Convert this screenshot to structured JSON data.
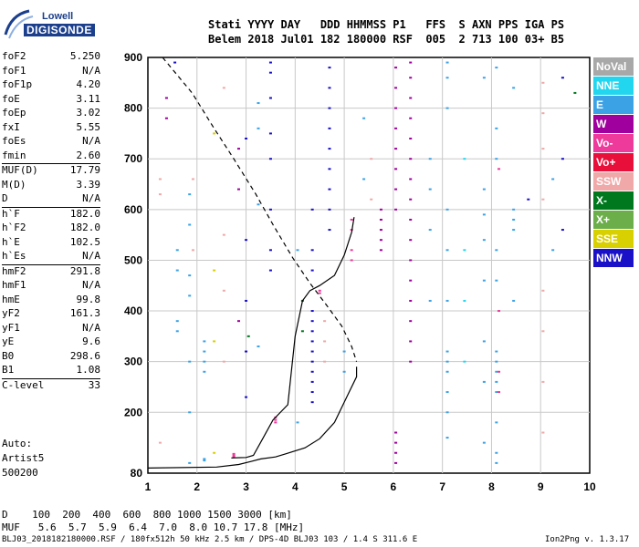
{
  "logo": {
    "line1": "Lowell",
    "line2": "DIGISONDE"
  },
  "header": {
    "line1": "Stati YYYY DAY   DDD HHMMSS P1   FFS  S AXN PPS IGA PS",
    "line2": "Belem 2018 Jul01 182 180000 RSF  005  2 713 100 03+ B5"
  },
  "params": [
    {
      "label": "foF2",
      "value": "5.250"
    },
    {
      "label": "foF1",
      "value": "N/A"
    },
    {
      "label": "foF1p",
      "value": "4.20"
    },
    {
      "label": "foE",
      "value": "3.11"
    },
    {
      "label": "foEp",
      "value": "3.02"
    },
    {
      "label": "fxI",
      "value": "5.55"
    },
    {
      "label": "foEs",
      "value": "N/A"
    },
    {
      "label": "fmin",
      "value": "2.60"
    },
    {
      "label": "MUF(D)",
      "value": "17.79",
      "sep": true
    },
    {
      "label": "M(D)",
      "value": "3.39"
    },
    {
      "label": "D",
      "value": "N/A"
    },
    {
      "label": "h`F",
      "value": "182.0",
      "sep": true
    },
    {
      "label": "h`F2",
      "value": "182.0"
    },
    {
      "label": "h`E",
      "value": "102.5"
    },
    {
      "label": "h`Es",
      "value": "N/A"
    },
    {
      "label": "hmF2",
      "value": "291.8",
      "sep": true
    },
    {
      "label": "hmF1",
      "value": "N/A"
    },
    {
      "label": "hmE",
      "value": "99.8"
    },
    {
      "label": "yF2",
      "value": "161.3"
    },
    {
      "label": "yF1",
      "value": "N/A"
    },
    {
      "label": "yE",
      "value": "9.6"
    },
    {
      "label": "B0",
      "value": "298.6"
    },
    {
      "label": "B1",
      "value": "1.08"
    },
    {
      "label": "C-level",
      "value": "33",
      "sep": true
    }
  ],
  "auto": {
    "line1": "Auto:",
    "line2": "Artist5",
    "line3": "500200"
  },
  "legend": [
    {
      "label": "NoVal",
      "color": "#a8a8a8"
    },
    {
      "label": "NNE",
      "color": "#22d6f0"
    },
    {
      "label": "E",
      "color": "#3ba2e6"
    },
    {
      "label": "W",
      "color": "#a0009e"
    },
    {
      "label": "Vo-",
      "color": "#ee3a9a"
    },
    {
      "label": "Vo+",
      "color": "#e8103a"
    },
    {
      "label": "SSW",
      "color": "#f0a8a8"
    },
    {
      "label": "X-",
      "color": "#00781e"
    },
    {
      "label": "X+",
      "color": "#6cae4a"
    },
    {
      "label": "SSE",
      "color": "#d8d000"
    },
    {
      "label": "NNW",
      "color": "#1a10c8"
    }
  ],
  "muf_table": {
    "row1": "D    100  200  400  600  800 1000 1500 3000 [km]",
    "row2": "MUF   5.6  5.7  5.9  6.4  7.0  8.0 10.7 17.8 [MHz]"
  },
  "footer": {
    "left": "BLJ03_2018182180000.RSF / 180fx512h 50 kHz 2.5 km / DPS-4D BLJ03 103 / 1.4 S 311.6 E",
    "right": "Ion2Png v. 1.3.17"
  },
  "chart_data": {
    "type": "scatter",
    "xlabel": "",
    "ylabel": "",
    "xlim": [
      1,
      10
    ],
    "ylim": [
      80,
      900
    ],
    "x_ticks": [
      1,
      2,
      3,
      4,
      5,
      6,
      7,
      8,
      9,
      10
    ],
    "y_ticks": [
      80,
      200,
      300,
      400,
      500,
      600,
      700,
      800,
      900
    ],
    "grid": true,
    "legend_position": "right",
    "traces": [
      {
        "style": "solid",
        "points": [
          [
            1.0,
            90
          ],
          [
            2.4,
            92
          ],
          [
            2.85,
            97
          ],
          [
            3.1,
            103
          ],
          [
            3.3,
            108
          ],
          [
            3.6,
            112
          ],
          [
            3.8,
            118
          ],
          [
            4.2,
            130
          ],
          [
            4.5,
            148
          ],
          [
            4.8,
            180
          ],
          [
            5.1,
            240
          ],
          [
            5.25,
            270
          ],
          [
            5.25,
            290
          ]
        ]
      },
      {
        "style": "dashed",
        "points": [
          [
            1.3,
            900
          ],
          [
            1.9,
            830
          ],
          [
            2.35,
            760
          ],
          [
            2.75,
            700
          ],
          [
            3.2,
            630
          ],
          [
            3.55,
            570
          ],
          [
            3.95,
            505
          ],
          [
            4.3,
            455
          ],
          [
            4.65,
            410
          ],
          [
            4.95,
            370
          ],
          [
            5.15,
            330
          ],
          [
            5.25,
            300
          ]
        ]
      },
      {
        "style": "solid",
        "points": [
          [
            2.7,
            110
          ],
          [
            3.0,
            111
          ],
          [
            3.15,
            115
          ],
          [
            3.35,
            150
          ],
          [
            3.55,
            185
          ],
          [
            3.85,
            215
          ],
          [
            4.0,
            350
          ],
          [
            4.15,
            420
          ],
          [
            4.3,
            440
          ],
          [
            4.5,
            450
          ],
          [
            4.8,
            470
          ],
          [
            5.0,
            510
          ],
          [
            5.15,
            555
          ],
          [
            5.2,
            585
          ]
        ]
      }
    ],
    "echo_columns": [
      {
        "x": 1.25,
        "color": "#f0a8a8",
        "y": [
          140,
          630,
          660
        ]
      },
      {
        "x": 1.38,
        "color": "#a0009e",
        "y": [
          780,
          820
        ]
      },
      {
        "x": 1.55,
        "color": "#1a10c8",
        "y": [
          890
        ]
      },
      {
        "x": 1.6,
        "color": "#3ba2e6",
        "y": [
          380,
          360,
          480,
          520
        ]
      },
      {
        "x": 1.85,
        "color": "#3ba2e6",
        "y": [
          100,
          200,
          300,
          430,
          470,
          570,
          630
        ]
      },
      {
        "x": 1.92,
        "color": "#f0a8a8",
        "y": [
          520,
          660
        ]
      },
      {
        "x": 2.15,
        "color": "#3ba2e6",
        "y": [
          105,
          108,
          280,
          300,
          320,
          340
        ]
      },
      {
        "x": 2.35,
        "color": "#d8d000",
        "y": [
          120,
          340,
          480,
          750
        ]
      },
      {
        "x": 2.55,
        "color": "#f0a8a8",
        "y": [
          300,
          440,
          550,
          840
        ]
      },
      {
        "x": 2.75,
        "color": "#ee3a9a",
        "y": [
          112,
          115,
          118
        ]
      },
      {
        "x": 2.85,
        "color": "#a0009e",
        "y": [
          380,
          640,
          720
        ]
      },
      {
        "x": 3.0,
        "color": "#1a10c8",
        "y": [
          230,
          320,
          420,
          540,
          740
        ]
      },
      {
        "x": 3.05,
        "color": "#00781e",
        "y": [
          350
        ]
      },
      {
        "x": 3.25,
        "color": "#3ba2e6",
        "y": [
          330,
          610,
          760,
          810
        ]
      },
      {
        "x": 3.5,
        "color": "#1a10c8",
        "y": [
          480,
          520,
          600,
          700,
          750,
          820,
          870,
          890
        ]
      },
      {
        "x": 3.6,
        "color": "#ee3a9a",
        "y": [
          180,
          185,
          190
        ]
      },
      {
        "x": 4.05,
        "color": "#3ba2e6",
        "y": [
          180,
          520
        ]
      },
      {
        "x": 4.15,
        "color": "#00781e",
        "y": [
          420,
          360
        ]
      },
      {
        "x": 4.35,
        "color": "#1a10c8",
        "y": [
          220,
          240,
          260,
          280,
          300,
          320,
          340,
          360,
          380,
          400,
          480,
          520,
          600
        ]
      },
      {
        "x": 4.5,
        "color": "#ee3a9a",
        "y": [
          435,
          440
        ]
      },
      {
        "x": 4.6,
        "color": "#f0a8a8",
        "y": [
          300,
          340,
          380
        ]
      },
      {
        "x": 4.7,
        "color": "#1a10c8",
        "y": [
          560,
          600,
          640,
          680,
          720,
          760,
          800,
          840,
          880
        ]
      },
      {
        "x": 5.0,
        "color": "#3ba2e6",
        "y": [
          280,
          320
        ]
      },
      {
        "x": 5.15,
        "color": "#ee3a9a",
        "y": [
          500,
          520,
          560,
          580
        ]
      },
      {
        "x": 5.4,
        "color": "#3ba2e6",
        "y": [
          660,
          780
        ]
      },
      {
        "x": 5.55,
        "color": "#f0a8a8",
        "y": [
          620,
          700
        ]
      },
      {
        "x": 5.75,
        "color": "#a0009e",
        "y": [
          520,
          540,
          560,
          580,
          600
        ]
      },
      {
        "x": 6.05,
        "color": "#a0009e",
        "y": [
          100,
          120,
          140,
          160,
          600,
          640,
          680,
          720,
          760,
          800,
          840,
          880
        ]
      },
      {
        "x": 6.35,
        "color": "#a0009e",
        "y": [
          300,
          340,
          380,
          420,
          460,
          500,
          540,
          580,
          620,
          660,
          700,
          740,
          780,
          820,
          860,
          890
        ]
      },
      {
        "x": 6.75,
        "color": "#3ba2e6",
        "y": [
          420,
          560,
          640,
          700
        ]
      },
      {
        "x": 7.1,
        "color": "#3ba2e6",
        "y": [
          150,
          200,
          240,
          280,
          300,
          320,
          420,
          520,
          600,
          800,
          860,
          890
        ]
      },
      {
        "x": 7.45,
        "color": "#22d6f0",
        "y": [
          300,
          420,
          520,
          700
        ]
      },
      {
        "x": 7.85,
        "color": "#3ba2e6",
        "y": [
          140,
          260,
          340,
          460,
          540,
          590,
          640,
          860
        ]
      },
      {
        "x": 8.1,
        "color": "#3ba2e6",
        "y": [
          100,
          120,
          180,
          240,
          260,
          280,
          300,
          320,
          460,
          520,
          700,
          760,
          880
        ]
      },
      {
        "x": 8.15,
        "color": "#ee3a9a",
        "y": [
          240,
          280,
          400,
          680
        ]
      },
      {
        "x": 8.45,
        "color": "#3ba2e6",
        "y": [
          420,
          560,
          580,
          600,
          840
        ]
      },
      {
        "x": 8.75,
        "color": "#1a10c8",
        "y": [
          620
        ]
      },
      {
        "x": 9.05,
        "color": "#f0a8a8",
        "y": [
          160,
          260,
          360,
          440,
          620,
          720,
          790,
          850
        ]
      },
      {
        "x": 9.25,
        "color": "#3ba2e6",
        "y": [
          520,
          660
        ]
      },
      {
        "x": 9.45,
        "color": "#1a10c8",
        "y": [
          560,
          700,
          860
        ]
      },
      {
        "x": 9.7,
        "color": "#00781e",
        "y": [
          830
        ]
      }
    ]
  }
}
